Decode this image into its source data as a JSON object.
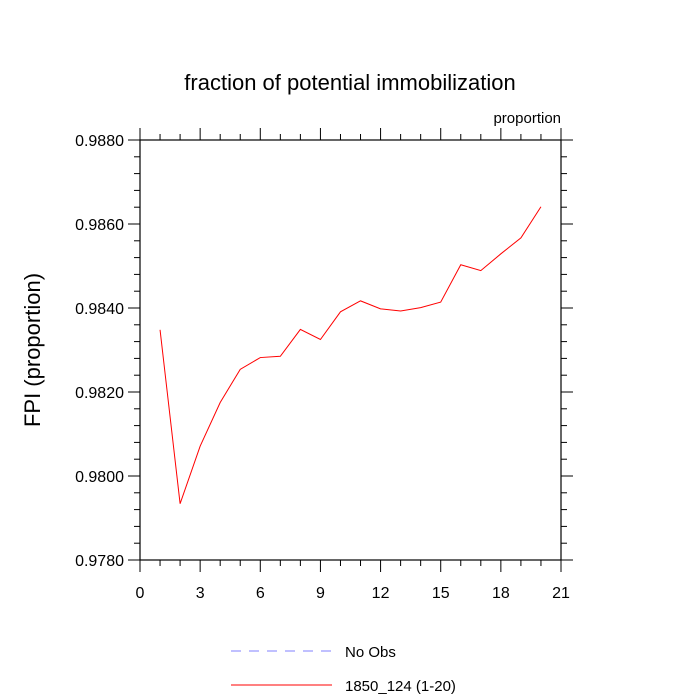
{
  "chart_data": {
    "type": "line",
    "title": "fraction of potential immobilization",
    "units_label": "proportion",
    "ylabel": "FPI  (proportion)",
    "xlabel": "",
    "xlim": [
      0,
      21
    ],
    "ylim": [
      0.978,
      0.988
    ],
    "x_ticks": [
      0,
      3,
      6,
      9,
      12,
      15,
      18,
      21
    ],
    "x_tick_labels": [
      "0",
      "3",
      "6",
      "9",
      "12",
      "15",
      "18",
      "21"
    ],
    "y_ticks": [
      0.978,
      0.98,
      0.982,
      0.984,
      0.986,
      0.988
    ],
    "y_tick_labels": [
      "0.9780",
      "0.9800",
      "0.9820",
      "0.9840",
      "0.9860",
      "0.9880"
    ],
    "grid": false,
    "legend_position": "bottom",
    "series": [
      {
        "name": "No Obs",
        "color": "#8080ff",
        "dashed": true,
        "x": [],
        "y": []
      },
      {
        "name": "1850_124 (1-20)",
        "color": "#ff0000",
        "dashed": false,
        "x": [
          1,
          2,
          3,
          4,
          5,
          6,
          7,
          8,
          9,
          10,
          11,
          12,
          13,
          14,
          15,
          16,
          17,
          18,
          19,
          20
        ],
        "y": [
          0.98348,
          0.97934,
          0.98071,
          0.98175,
          0.98254,
          0.98282,
          0.98285,
          0.98349,
          0.98325,
          0.98391,
          0.98417,
          0.98398,
          0.98393,
          0.98401,
          0.98414,
          0.98503,
          0.98489,
          0.98529,
          0.98567,
          0.98641
        ]
      }
    ]
  }
}
